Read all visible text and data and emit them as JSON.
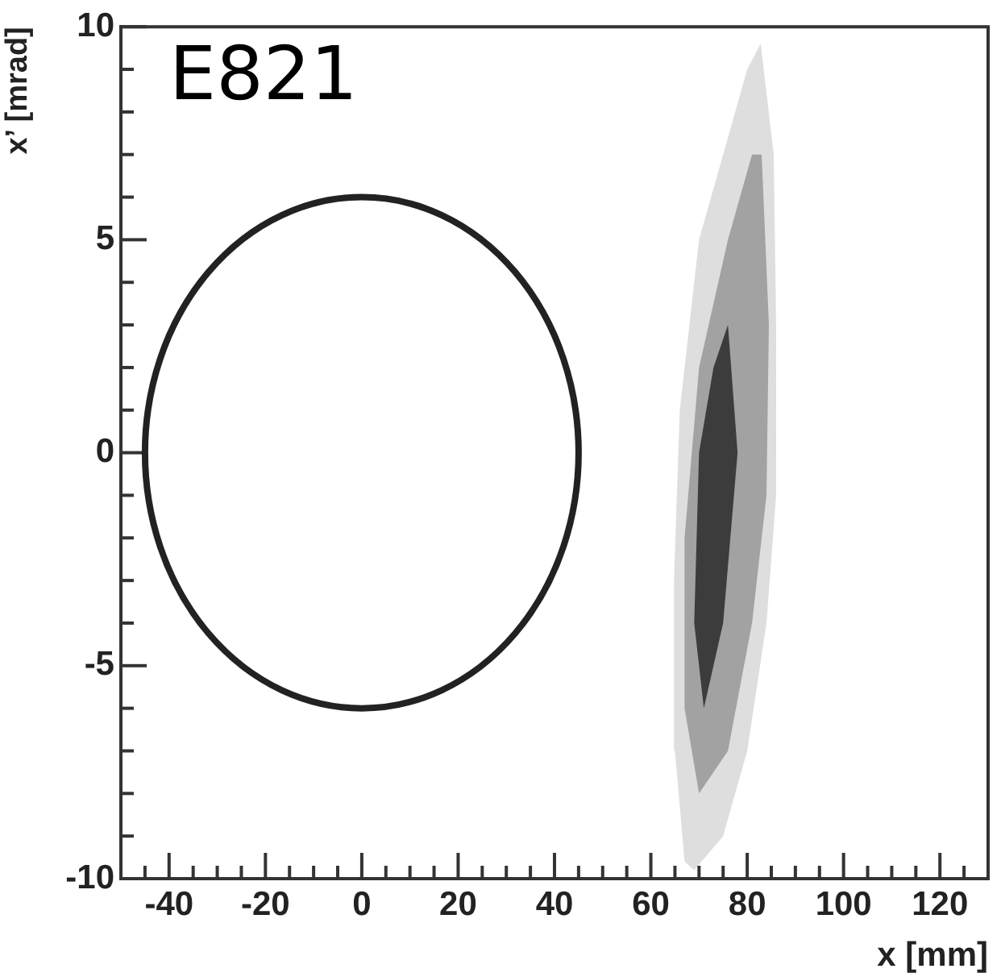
{
  "chart_data": {
    "type": "line",
    "xlabel": "x [mm]",
    "ylabel": "x’ [mrad]",
    "annotations": [
      "E821"
    ],
    "xlim": [
      -50,
      130
    ],
    "ylim": [
      -10,
      10
    ],
    "xticks": [
      {
        "value": -45,
        "label": null
      },
      -40,
      {
        "value": -35,
        "label": null
      },
      {
        "value": -30,
        "label": null
      },
      {
        "value": -25,
        "label": null
      },
      -20,
      {
        "value": -15,
        "label": null
      },
      {
        "value": -10,
        "label": null
      },
      {
        "value": -5,
        "label": null
      },
      0,
      {
        "value": 5,
        "label": null
      },
      {
        "value": 10,
        "label": null
      },
      {
        "value": 15,
        "label": null
      },
      20,
      {
        "value": 25,
        "label": null
      },
      {
        "value": 30,
        "label": null
      },
      {
        "value": 35,
        "label": null
      },
      40,
      {
        "value": 45,
        "label": null
      },
      {
        "value": 50,
        "label": null
      },
      {
        "value": 55,
        "label": null
      },
      60,
      {
        "value": 65,
        "label": null
      },
      {
        "value": 70,
        "label": null
      },
      {
        "value": 75,
        "label": null
      },
      80,
      {
        "value": 85,
        "label": null
      },
      {
        "value": 90,
        "label": null
      },
      {
        "value": 95,
        "label": null
      },
      100,
      {
        "value": 105,
        "label": null
      },
      {
        "value": 110,
        "label": null
      },
      {
        "value": 115,
        "label": null
      },
      120,
      {
        "value": 125,
        "label": null
      }
    ],
    "yticks": [
      -10,
      {
        "value": -9,
        "label": null
      },
      {
        "value": -8,
        "label": null
      },
      {
        "value": -7,
        "label": null
      },
      {
        "value": -6,
        "label": null
      },
      -5,
      {
        "value": -4,
        "label": null
      },
      {
        "value": -3,
        "label": null
      },
      {
        "value": -2,
        "label": null
      },
      {
        "value": -1,
        "label": null
      },
      0,
      {
        "value": 1,
        "label": null
      },
      {
        "value": 2,
        "label": null
      },
      {
        "value": 3,
        "label": null
      },
      {
        "value": 4,
        "label": null
      },
      5,
      {
        "value": 6,
        "label": null
      },
      {
        "value": 7,
        "label": null
      },
      {
        "value": 8,
        "label": null
      },
      {
        "value": 9,
        "label": null
      },
      10
    ],
    "grid": false,
    "legend": false,
    "marker": "none",
    "series": [
      {
        "type": "area",
        "color": "#dedede",
        "x": [
          82.8,
          85.5,
          86,
          86,
          84,
          80,
          75,
          69,
          67,
          65,
          64.8,
          66,
          70,
          75,
          80,
          82.8
        ],
        "values": [
          9.6,
          7,
          3,
          -1,
          -4,
          -7,
          -9,
          -9.8,
          -9.6,
          -7,
          -3,
          1,
          5,
          7,
          9,
          9.6
        ]
      },
      {
        "type": "area",
        "color": "#a2a2a2",
        "x": [
          83,
          84.5,
          84,
          81,
          76,
          70,
          67,
          67,
          70,
          76,
          81,
          83
        ],
        "values": [
          7,
          3,
          -1,
          -4,
          -7,
          -8,
          -6,
          -2,
          2,
          5,
          7,
          7
        ]
      },
      {
        "type": "area",
        "color": "#3c3c3c",
        "x": [
          76,
          78,
          75,
          71,
          69,
          70,
          73,
          76
        ],
        "values": [
          3,
          0,
          -4,
          -6,
          -4,
          0,
          2,
          3
        ]
      }
    ]
  }
}
